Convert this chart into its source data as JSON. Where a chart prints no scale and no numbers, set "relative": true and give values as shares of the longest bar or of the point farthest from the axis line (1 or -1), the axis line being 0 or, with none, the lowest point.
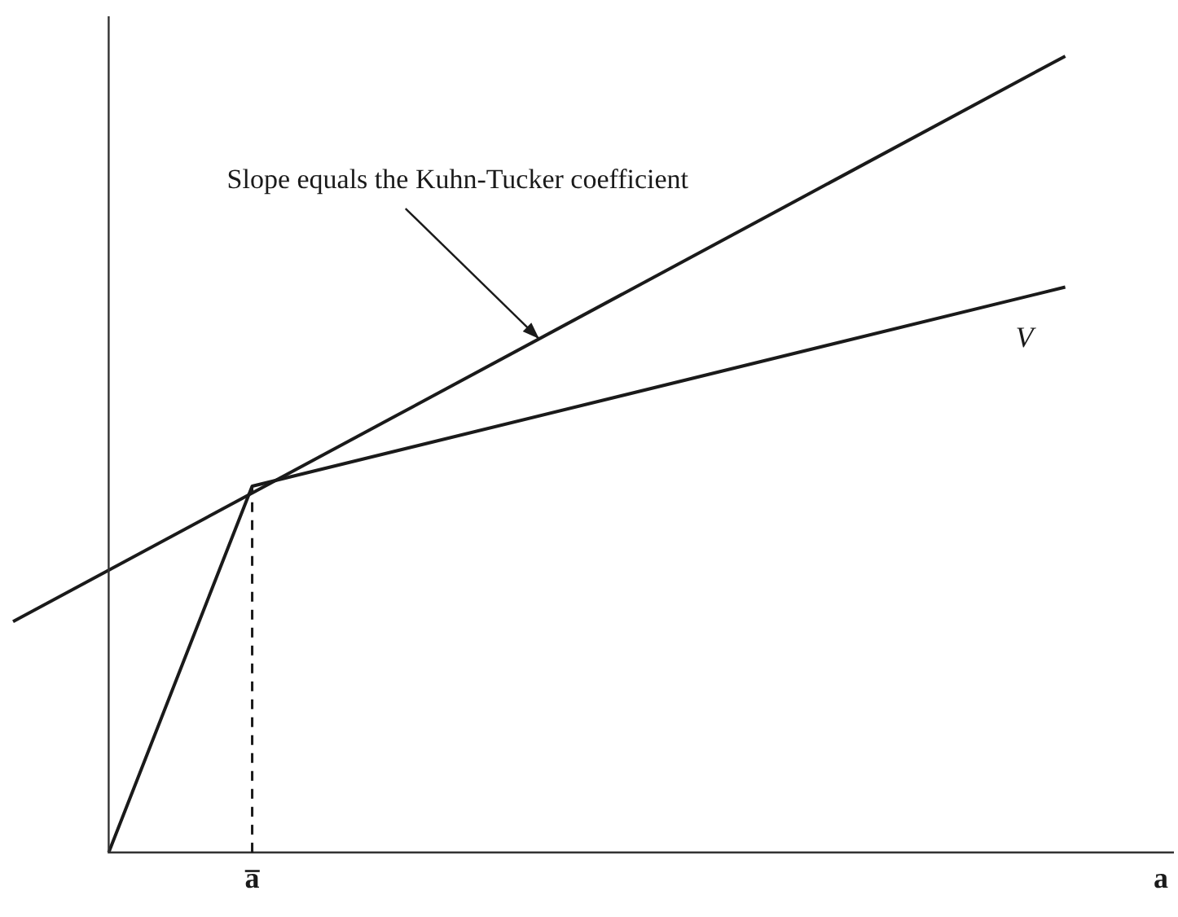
{
  "chart_data": {
    "type": "line",
    "relative": true,
    "ylim": [
      0,
      1.05
    ],
    "categories": [
      null,
      null,
      null,
      null,
      null,
      "a̅",
      null,
      null,
      null,
      null,
      null,
      null,
      null,
      null,
      null,
      null,
      null,
      null,
      null,
      null,
      null,
      null,
      null,
      null,
      "a"
    ],
    "tick_labels": "x",
    "grid": false,
    "legend": false,
    "marker": "none",
    "annotations": [
      "Slope equals the Kuhn-Tucker coefficient"
    ],
    "ref_lines": [
      {
        "axis": "x",
        "value": "a̅",
        "line_style": "dashed",
        "color": "#1a1a1a"
      }
    ],
    "series": [
      {
        "name": "V",
        "color": "#1a1a1a",
        "values": [
          null,
          null,
          0,
          null,
          null,
          0.46,
          null,
          null,
          null,
          null,
          null,
          null,
          null,
          null,
          null,
          null,
          null,
          null,
          null,
          null,
          null,
          null,
          0.71,
          null,
          null
        ]
      },
      {
        "color": "#1a1a1a",
        "values": [
          0.29,
          null,
          null,
          null,
          null,
          null,
          null,
          null,
          null,
          null,
          null,
          null,
          null,
          null,
          null,
          null,
          null,
          null,
          null,
          null,
          null,
          null,
          1.0,
          null,
          null
        ]
      }
    ]
  }
}
